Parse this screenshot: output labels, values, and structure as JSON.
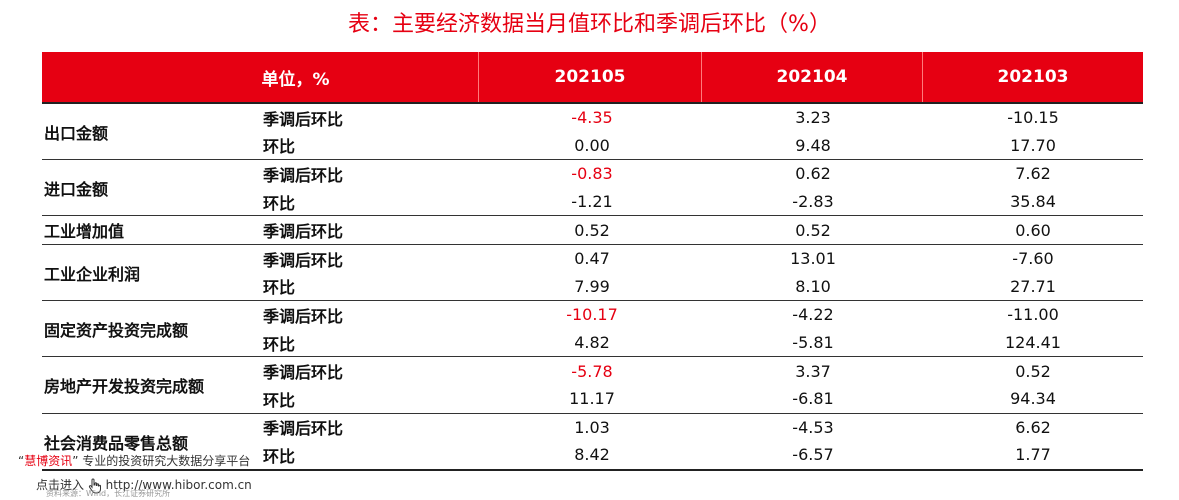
{
  "title": "表：主要经济数据当月值环比和季调后环比（%）",
  "header": {
    "unit": "单位，%",
    "periods": [
      "202105",
      "202104",
      "202103"
    ]
  },
  "groups": [
    {
      "name": "出口金额",
      "rows": [
        {
          "metric": "季调后环比",
          "values": [
            "-4.35",
            "3.23",
            "-10.15"
          ]
        },
        {
          "metric": "环比",
          "values": [
            "0.00",
            "9.48",
            "17.70"
          ]
        }
      ]
    },
    {
      "name": "进口金额",
      "rows": [
        {
          "metric": "季调后环比",
          "values": [
            "-0.83",
            "0.62",
            "7.62"
          ]
        },
        {
          "metric": "环比",
          "values": [
            "-1.21",
            "-2.83",
            "35.84"
          ]
        }
      ]
    },
    {
      "name": "工业增加值",
      "rows": [
        {
          "metric": "季调后环比",
          "values": [
            "0.52",
            "0.52",
            "0.60"
          ]
        }
      ]
    },
    {
      "name": "工业企业利润",
      "rows": [
        {
          "metric": "季调后环比",
          "values": [
            "0.47",
            "13.01",
            "-7.60"
          ]
        },
        {
          "metric": "环比",
          "values": [
            "7.99",
            "8.10",
            "27.71"
          ]
        }
      ]
    },
    {
      "name": "固定资产投资完成额",
      "rows": [
        {
          "metric": "季调后环比",
          "values": [
            "-10.17",
            "-4.22",
            "-11.00"
          ]
        },
        {
          "metric": "环比",
          "values": [
            "4.82",
            "-5.81",
            "124.41"
          ]
        }
      ]
    },
    {
      "name": "房地产开发投资完成额",
      "rows": [
        {
          "metric": "季调后环比",
          "values": [
            "-5.78",
            "3.37",
            "0.52"
          ]
        },
        {
          "metric": "环比",
          "values": [
            "11.17",
            "-6.81",
            "94.34"
          ]
        }
      ]
    },
    {
      "name": "社会消费品零售总额",
      "rows": [
        {
          "metric": "季调后环比",
          "values": [
            "1.03",
            "-4.53",
            "6.62"
          ]
        },
        {
          "metric": "环比",
          "values": [
            "8.42",
            "-6.57",
            "1.77"
          ]
        }
      ]
    }
  ],
  "highlight_color": "#e60012",
  "watermark": {
    "quote_open": "“",
    "brand": "慧博资讯",
    "quote_close": "”",
    "tagline": "专业的投资研究大数据分享平台",
    "link_prefix": "点击进入",
    "link_icon": "hand-pointer-icon",
    "url": "http://www.hibor.com.cn",
    "source": "资料来源：Wind，长江证券研究所"
  }
}
